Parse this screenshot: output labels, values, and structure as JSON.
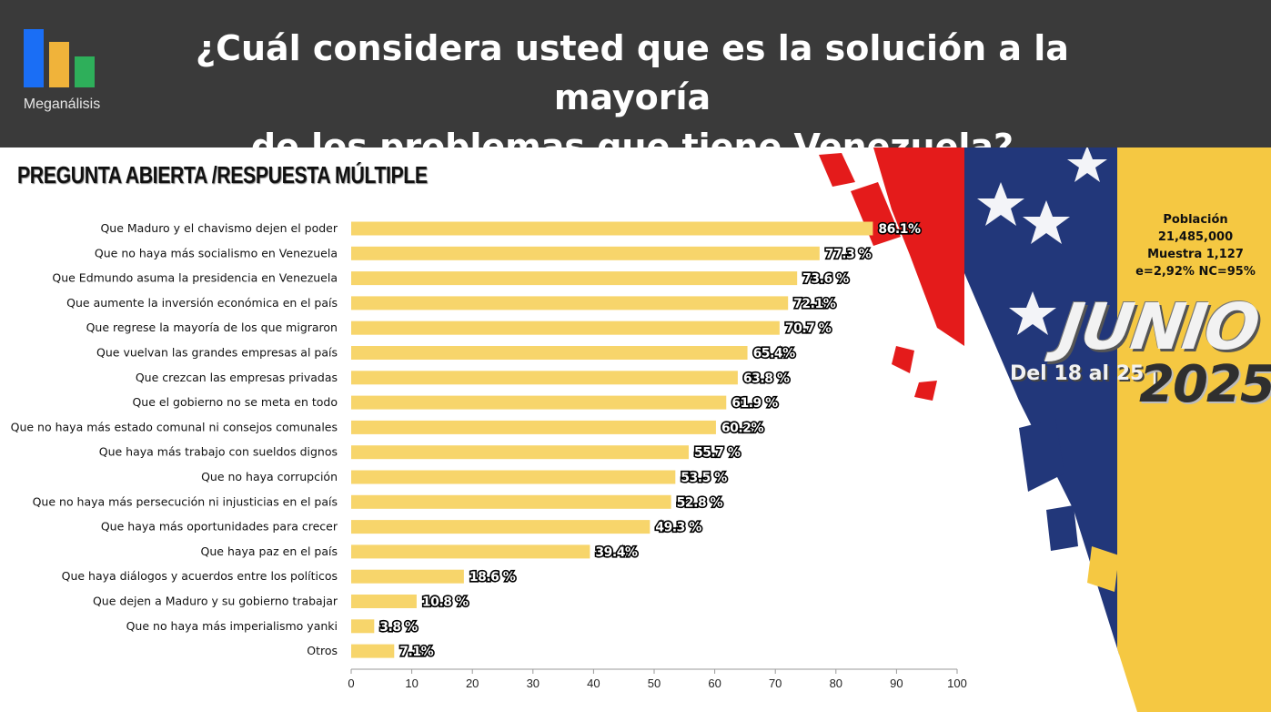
{
  "header": {
    "logo_text": "Meganálisis",
    "title_line1": "¿Cuál considera usted que es la solución a la mayoría",
    "title_line2": "de los problemas que tiene Venezuela?"
  },
  "subtitle": "PREGUNTA ABIERTA /RESPUESTA MÚLTIPLE",
  "info": {
    "population_label": "Población",
    "population_value": "21,485,000",
    "sample": "Muestra 1,127",
    "error": "e=2,92%  NC=95%"
  },
  "date": {
    "month": "JUNIO",
    "range": "Del 18 al 25 |",
    "year": "2025"
  },
  "colors": {
    "bar": "#f7d56b",
    "header_bg": "#3a3a3a",
    "flag_red": "#e41b1b",
    "flag_blue": "#22377a",
    "flag_yellow": "#f5c842"
  },
  "chart_data": {
    "type": "bar",
    "orientation": "horizontal",
    "categories": [
      "Que Maduro y el chavismo dejen el poder",
      "Que no haya más socialismo en Venezuela",
      "Que Edmundo asuma la presidencia en Venezuela",
      "Que aumente la inversión económica en el país",
      "Que regrese la mayoría de los que migraron",
      "Que vuelvan las grandes empresas al país",
      "Que crezcan las empresas privadas",
      "Que el gobierno no se meta en todo",
      "Que no haya más estado comunal ni consejos comunales",
      "Que haya más trabajo con sueldos dignos",
      "Que no haya corrupción",
      "Que no haya más persecución ni injusticias en el país",
      "Que haya más oportunidades para crecer",
      "Que haya paz en el país",
      "Que haya diálogos y acuerdos entre los políticos",
      "Que dejen a Maduro y su gobierno trabajar",
      "Que no haya más imperialismo yanki",
      "Otros"
    ],
    "values": [
      86.1,
      77.3,
      73.6,
      72.1,
      70.7,
      65.4,
      63.8,
      61.9,
      60.2,
      55.7,
      53.5,
      52.8,
      49.3,
      39.4,
      18.6,
      10.8,
      3.8,
      7.1
    ],
    "value_labels": [
      "86.1%",
      "77.3 %",
      "73.6 %",
      "72.1%",
      "70.7 %",
      "65.4%",
      "63.8 %",
      "61.9 %",
      "60.2%",
      "55.7 %",
      "53.5 %",
      "52.8 %",
      "49.3 %",
      "39.4%",
      "18.6 %",
      "10.8 %",
      "3.8 %",
      "7.1%"
    ],
    "xlim": [
      0,
      100
    ],
    "xticks": [
      0,
      10,
      20,
      30,
      40,
      50,
      60,
      70,
      80,
      90,
      100
    ],
    "grid": false,
    "legend": "none"
  }
}
